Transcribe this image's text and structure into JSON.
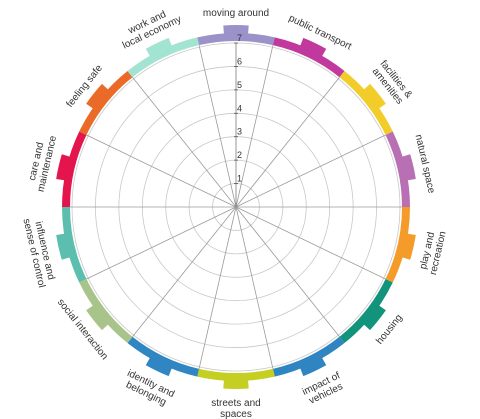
{
  "chart_data": {
    "type": "radar",
    "ticks": [
      "1",
      "2",
      "3",
      "4",
      "5",
      "6",
      "7"
    ],
    "rlim": [
      0,
      7
    ],
    "grid": true,
    "categories": [
      {
        "lines": [
          "moving around"
        ],
        "color": "#9b92c9"
      },
      {
        "lines": [
          "public transport"
        ],
        "color": "#c1399c"
      },
      {
        "lines": [
          "facilities &",
          "amenities"
        ],
        "color": "#f2cd2a"
      },
      {
        "lines": [
          "natural space"
        ],
        "color": "#b86fb4"
      },
      {
        "lines": [
          "play and",
          "recreation"
        ],
        "color": "#f49b2a"
      },
      {
        "lines": [
          "housing"
        ],
        "color": "#12937c"
      },
      {
        "lines": [
          "impact of",
          "vehicles"
        ],
        "color": "#2e85c2"
      },
      {
        "lines": [
          "streets and",
          "spaces"
        ],
        "color": "#c5cf22"
      },
      {
        "lines": [
          "identity and",
          "belonging"
        ],
        "color": "#2f86c2"
      },
      {
        "lines": [
          "social interaction"
        ],
        "color": "#a9c48b"
      },
      {
        "lines": [
          "influence and",
          "sense of control"
        ],
        "color": "#5cbeae"
      },
      {
        "lines": [
          "care and",
          "maintenance"
        ],
        "color": "#e3154c"
      },
      {
        "lines": [
          "feeling safe"
        ],
        "color": "#ea6a27"
      },
      {
        "lines": [
          "work and",
          "local economy"
        ],
        "color": "#a3e3d2"
      }
    ]
  }
}
